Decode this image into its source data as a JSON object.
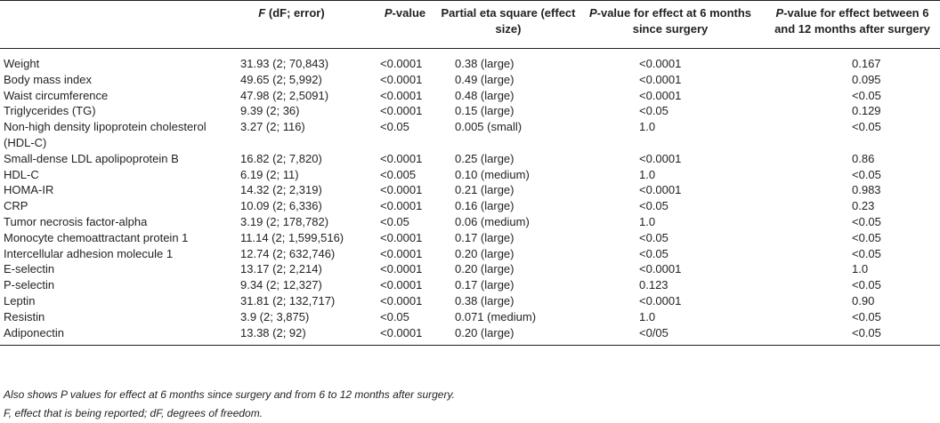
{
  "table": {
    "headers": [
      {
        "italic": "",
        "rest": ""
      },
      {
        "italic": "F",
        "rest": " (dF; error)"
      },
      {
        "italic": "P",
        "rest": "-value"
      },
      {
        "italic": "",
        "rest": "Partial eta square (effect size)"
      },
      {
        "italic": "P",
        "rest": "-value for effect at 6 months since surgery"
      },
      {
        "italic": "P",
        "rest": "-value for effect between 6 and 12 months after surgery"
      }
    ],
    "rows": [
      [
        "Weight",
        "31.93 (2; 70,843)",
        "<0.0001",
        "0.38 (large)",
        "<0.0001",
        "0.167"
      ],
      [
        "Body mass index",
        "49.65 (2; 5,992)",
        "<0.0001",
        "0.49 (large)",
        "<0.0001",
        "0.095"
      ],
      [
        "Waist circumference",
        "47.98 (2; 2,5091)",
        "<0.0001",
        "0.48 (large)",
        "<0.0001",
        "<0.05"
      ],
      [
        "Triglycerides (TG)",
        "9.39 (2; 36)",
        "<0.0001",
        "0.15 (large)",
        "<0.05",
        "0.129"
      ],
      [
        "Non-high density lipoprotein cholesterol (HDL-C)",
        "3.27 (2; 116)",
        "<0.05",
        "0.005 (small)",
        "1.0",
        "<0.05"
      ],
      [
        "Small-dense LDL apolipoprotein B",
        "16.82 (2; 7,820)",
        "<0.0001",
        "0.25 (large)",
        "<0.0001",
        "0.86"
      ],
      [
        "HDL-C",
        "6.19 (2; 11)",
        "<0.005",
        "0.10 (medium)",
        "1.0",
        "<0.05"
      ],
      [
        "HOMA-IR",
        "14.32 (2; 2,319)",
        "<0.0001",
        "0.21 (large)",
        "<0.0001",
        "0.983"
      ],
      [
        "CRP",
        "10.09 (2; 6,336)",
        "<0.0001",
        "0.16 (large)",
        "<0.05",
        "0.23"
      ],
      [
        "Tumor necrosis factor-alpha",
        "3.19 (2; 178,782)",
        "<0.05",
        "0.06 (medium)",
        "1.0",
        "<0.05"
      ],
      [
        "Monocyte chemoattractant protein 1",
        "11.14 (2; 1,599,516)",
        "<0.0001",
        "0.17 (large)",
        "<0.05",
        "<0.05"
      ],
      [
        "Intercellular adhesion molecule 1",
        "12.74 (2; 632,746)",
        "<0.0001",
        "0.20 (large)",
        "<0.05",
        "<0.05"
      ],
      [
        "E-selectin",
        "13.17 (2; 2,214)",
        "<0.0001",
        "0.20 (large)",
        "<0.0001",
        "1.0"
      ],
      [
        "P-selectin",
        "9.34 (2; 12,327)",
        "<0.0001",
        "0.17 (large)",
        "0.123",
        "<0.05"
      ],
      [
        "Leptin",
        "31.81 (2; 132,717)",
        "<0.0001",
        "0.38 (large)",
        "<0.0001",
        "0.90"
      ],
      [
        "Resistin",
        "3.9 (2; 3,875)",
        "<0.05",
        "0.071 (medium)",
        "1.0",
        "<0.05"
      ],
      [
        "Adiponectin",
        "13.38 (2; 92)",
        "<0.0001",
        "0.20 (large)",
        "<0/05",
        "<0.05"
      ]
    ]
  },
  "footnotes": [
    "Also shows P values for effect at 6 months since surgery and from 6 to 12 months after surgery.",
    "F, effect that is being reported; dF, degrees of freedom."
  ]
}
